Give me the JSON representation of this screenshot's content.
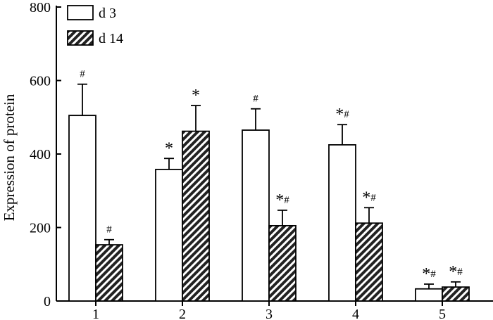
{
  "chart_data": {
    "type": "bar",
    "title": "",
    "xlabel": "",
    "ylabel": "Expression of protein",
    "ylim": [
      0,
      800
    ],
    "yticks": [
      0,
      200,
      400,
      600,
      800
    ],
    "categories": [
      "1",
      "2",
      "3",
      "4",
      "5"
    ],
    "legend_position": "top-left",
    "grid": false,
    "series": [
      {
        "name": "d 3",
        "fill": "white",
        "values": [
          505,
          358,
          465,
          425,
          33
        ],
        "errors": [
          85,
          30,
          58,
          55,
          13
        ],
        "annotations": [
          "#",
          "*",
          "#",
          "*#",
          "*#"
        ]
      },
      {
        "name": "d 14",
        "fill": "hatched",
        "values": [
          153,
          462,
          205,
          212,
          38
        ],
        "errors": [
          14,
          70,
          42,
          42,
          14
        ],
        "annotations": [
          "#",
          "*",
          "*#",
          "*#",
          "*#"
        ]
      }
    ]
  },
  "colors": {
    "bar_outline": "#000000",
    "hatch": "#222222",
    "background": "#ffffff"
  }
}
